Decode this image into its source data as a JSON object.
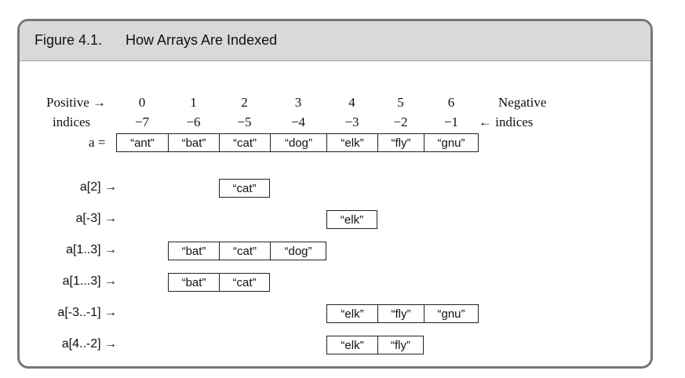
{
  "header": {
    "figure_label": "Figure 4.1.",
    "title": "How Arrays Are Indexed"
  },
  "top": {
    "positive_label_1": "Positive →",
    "positive_label_2": "indices",
    "negative_label_1": "Negative",
    "negative_label_2": "← indices",
    "array_label": "a ="
  },
  "positive_indices": [
    "0",
    "1",
    "2",
    "3",
    "4",
    "5",
    "6"
  ],
  "negative_indices": [
    "−7",
    "−6",
    "−5",
    "−4",
    "−3",
    "−2",
    "−1"
  ],
  "array": [
    "“ant”",
    "“bat”",
    "“cat”",
    "“dog”",
    "“elk”",
    "“fly”",
    "“gnu”"
  ],
  "rows": [
    {
      "label": "a[2] →",
      "start": 2,
      "cells": [
        "“cat”"
      ]
    },
    {
      "label": "a[-3] →",
      "start": 4,
      "cells": [
        "“elk”"
      ]
    },
    {
      "label": "a[1..3] →",
      "start": 1,
      "cells": [
        "“bat”",
        "“cat”",
        "“dog”"
      ]
    },
    {
      "label": "a[1...3] →",
      "start": 1,
      "cells": [
        "“bat”",
        "“cat”"
      ]
    },
    {
      "label": "a[-3..-1] →",
      "start": 4,
      "cells": [
        "“elk”",
        "“fly”",
        "“gnu”"
      ]
    },
    {
      "label": "a[4..-2] →",
      "start": 4,
      "cells": [
        "“elk”",
        "“fly”"
      ]
    }
  ]
}
